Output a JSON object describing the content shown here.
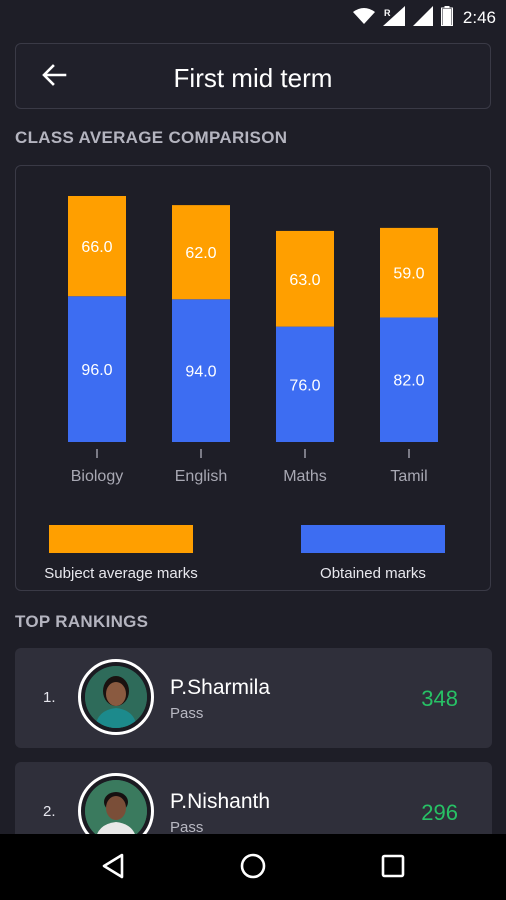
{
  "status_bar": {
    "time": "2:46",
    "icons": [
      "wifi-icon",
      "signal-roaming-icon",
      "signal-icon",
      "battery-icon"
    ]
  },
  "header": {
    "title": "First mid term",
    "back_icon": "arrow-left-icon"
  },
  "chart_section": {
    "title": "CLASS AVERAGE COMPARISON"
  },
  "chart_data": {
    "type": "bar",
    "stacked": true,
    "categories": [
      "Biology",
      "English",
      "Maths",
      "Tamil"
    ],
    "series": [
      {
        "name": "Obtained marks",
        "values": [
          96.0,
          94.0,
          76.0,
          82.0
        ],
        "color": "#3d6df2"
      },
      {
        "name": "Subject average marks",
        "values": [
          66.0,
          62.0,
          63.0,
          59.0
        ],
        "color": "#ff9f00"
      }
    ],
    "value_labels": {
      "obtained": [
        "96.0",
        "94.0",
        "76.0",
        "82.0"
      ],
      "average": [
        "66.0",
        "62.0",
        "63.0",
        "59.0"
      ]
    },
    "ylim": [
      0,
      162
    ],
    "legend": [
      "Subject average marks",
      "Obtained marks"
    ],
    "legend_position": "bottom"
  },
  "legend": {
    "average_label": "Subject average marks",
    "obtained_label": "Obtained marks",
    "average_color": "#ff9f00",
    "obtained_color": "#3d6df2"
  },
  "rankings_section": {
    "title": "TOP RANKINGS"
  },
  "rankings": [
    {
      "rank": "1.",
      "name": "P.Sharmila",
      "status": "Pass",
      "score": "348"
    },
    {
      "rank": "2.",
      "name": "P.Nishanth",
      "status": "Pass",
      "score": "296"
    }
  ],
  "nav_bar": {
    "icons": [
      "back-triangle-icon",
      "home-circle-icon",
      "recents-square-icon"
    ]
  },
  "colors": {
    "background": "#1e1e27",
    "card": "#2f2f3a",
    "score": "#27c165"
  }
}
